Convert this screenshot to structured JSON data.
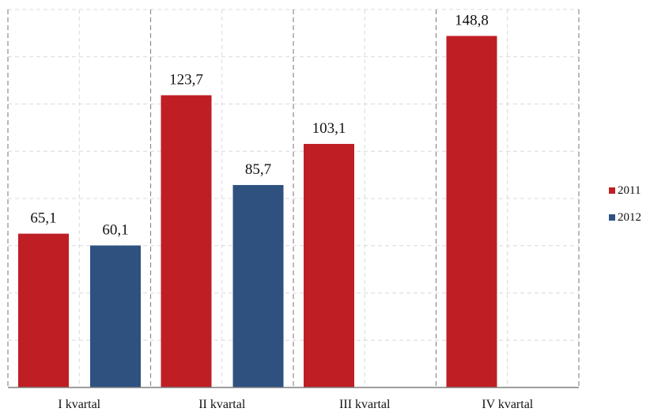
{
  "chart_data": {
    "type": "bar",
    "categories": [
      "I kvartal",
      "II kvartal",
      "III kvartal",
      "IV kvartal"
    ],
    "series": [
      {
        "name": "2011",
        "color": "#be1e24",
        "values": [
          65.1,
          123.7,
          103.1,
          148.8
        ],
        "labels": [
          "65,1",
          "123,7",
          "103,1",
          "148,8"
        ]
      },
      {
        "name": "2012",
        "color": "#2e5180",
        "values": [
          60.1,
          85.7,
          null,
          null
        ],
        "labels": [
          "60,1",
          "85,7",
          "",
          ""
        ]
      }
    ],
    "ylim": [
      0,
      160
    ],
    "grid": true,
    "legend_position": "right"
  }
}
